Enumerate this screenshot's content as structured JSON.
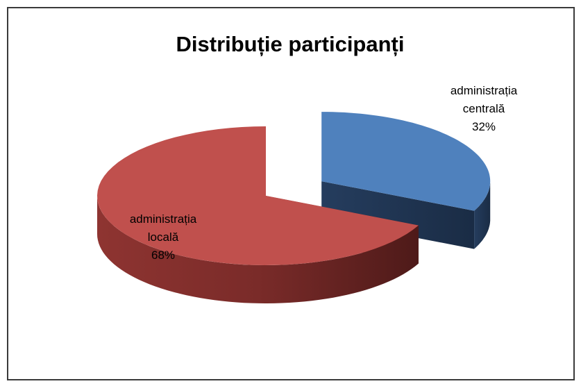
{
  "chart_data": {
    "type": "pie",
    "title": "Distribuție participanți",
    "categories": [
      "administrația centrală",
      "administrația locală"
    ],
    "values": [
      32,
      68
    ],
    "value_labels": [
      "32%",
      "68%"
    ],
    "colors": [
      "#4f81bd",
      "#c0504d"
    ],
    "exploded": [
      true,
      false
    ],
    "view": "3d"
  }
}
